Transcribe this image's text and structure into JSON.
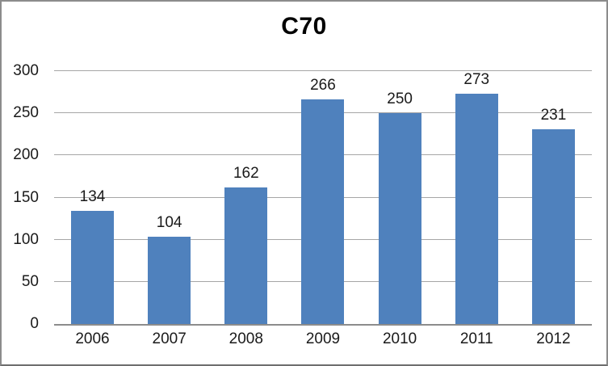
{
  "chart_data": {
    "type": "bar",
    "title": "C70",
    "categories": [
      "2006",
      "2007",
      "2008",
      "2009",
      "2010",
      "2011",
      "2012"
    ],
    "values": [
      134,
      104,
      162,
      266,
      250,
      273,
      231
    ],
    "xlabel": "",
    "ylabel": "",
    "ylim": [
      0,
      300
    ],
    "yticks": [
      0,
      50,
      100,
      150,
      200,
      250,
      300
    ],
    "grid": true,
    "legend": "none",
    "data_labels": true,
    "colors": {
      "bar": "#4F81BD",
      "gridline": "#A6A6A6",
      "axis": "#8C8C8C",
      "text": "#1A1A1A",
      "frame_border": "#8C8C8C",
      "frame_border_dark": "#6E6E6E",
      "background": "#FFFFFF"
    }
  }
}
